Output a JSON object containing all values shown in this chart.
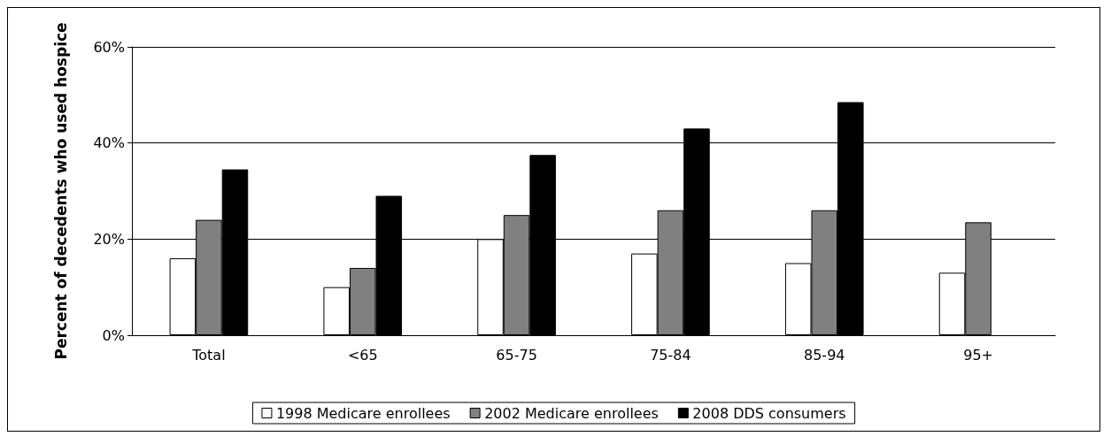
{
  "chart_data": {
    "type": "bar",
    "ylabel": "Percent of decedents who used hospice",
    "categories": [
      "Total",
      "<65",
      "65-75",
      "75-84",
      "85-94",
      "95+"
    ],
    "series": [
      {
        "name": "1998 Medicare enrollees",
        "color": "#ffffff",
        "values": [
          16,
          10,
          20,
          17,
          15,
          13
        ]
      },
      {
        "name": "2002 Medicare enrollees",
        "color": "#808080",
        "values": [
          24,
          14,
          25,
          26,
          26,
          23.5
        ]
      },
      {
        "name": "2008 DDS consumers",
        "color": "#000000",
        "values": [
          34.5,
          29,
          37.5,
          43,
          48.5,
          null
        ]
      }
    ],
    "ylim": [
      0,
      60
    ],
    "yticks": [
      {
        "value": 0,
        "label": "0%"
      },
      {
        "value": 20,
        "label": "20%"
      },
      {
        "value": 40,
        "label": "40%"
      },
      {
        "value": 60,
        "label": "60%"
      }
    ],
    "grid": "y",
    "legend": "bottom"
  }
}
